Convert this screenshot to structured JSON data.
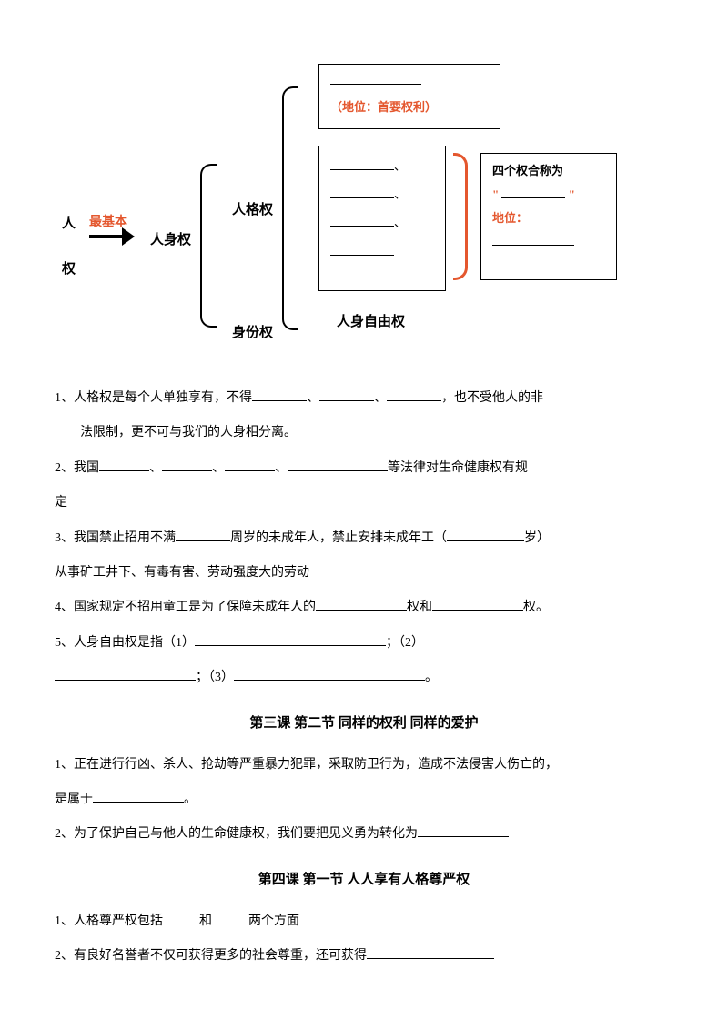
{
  "diagram": {
    "root_top": "人",
    "root_bottom": "权",
    "arrow_label": "最基本",
    "level1": "人身权",
    "level2_top": "人格权",
    "level2_bottom": "身份权",
    "level3_bottom": "人身自由权",
    "top_box_subtitle": "（地位：首要权利）",
    "right_box_line1": "四个权合称为",
    "right_box_quote_open": "\"",
    "right_box_quote_close": "\"",
    "right_box_line3": "地位：",
    "comma": "、"
  },
  "q1": {
    "text1": "1、人格权是每个人单独享有，不得",
    "sep": "、",
    "text2": "，也不受他人的非",
    "text3": "法限制，更不可与我们的人身相分离。"
  },
  "q2": {
    "text1": "2、我国",
    "sep": "、",
    "text2": "等法律对生命健康权有规",
    "text3": "定"
  },
  "q3": {
    "text1": "3、我国禁止招用不满",
    "text2": "周岁的未成年人，禁止安排未成年工（",
    "text3": "岁）",
    "text4": "从事矿工井下、有毒有害、劳动强度大的劳动"
  },
  "q4": {
    "text1": "4、国家规定不招用童工是为了保障未成年人的",
    "text2": "权和",
    "text3": "权。"
  },
  "q5": {
    "text1": "5、人身自由权是指（1）",
    "text2": "；（2）",
    "text3": "；（3）",
    "text4": "。"
  },
  "section3": {
    "title": "第三课 第二节 同样的权利 同样的爱护",
    "q1_text1": "1、正在进行行凶、杀人、抢劫等严重暴力犯罪，采取防卫行为，造成不法侵害人伤亡的，",
    "q1_text2": "是属于",
    "q1_text3": "。",
    "q2_text1": "2、为了保护自己与他人的生命健康权，我们要把见义勇为转化为",
    "q2_text2": ""
  },
  "section4": {
    "title": "第四课 第一节 人人享有人格尊严权",
    "q1_text1": "1、人格尊严权包括",
    "q1_text2": "和",
    "q1_text3": "两个方面",
    "q2_text1": "2、有良好名誉者不仅可获得更多的社会尊重，还可获得"
  },
  "blanks": {
    "w40": "40px",
    "w55": "55px",
    "w60": "60px",
    "w70": "70px",
    "w80": "80px",
    "w85": "85px",
    "w100": "100px",
    "w110": "110px",
    "w140": "140px",
    "w155": "155px",
    "w210": "210px"
  }
}
